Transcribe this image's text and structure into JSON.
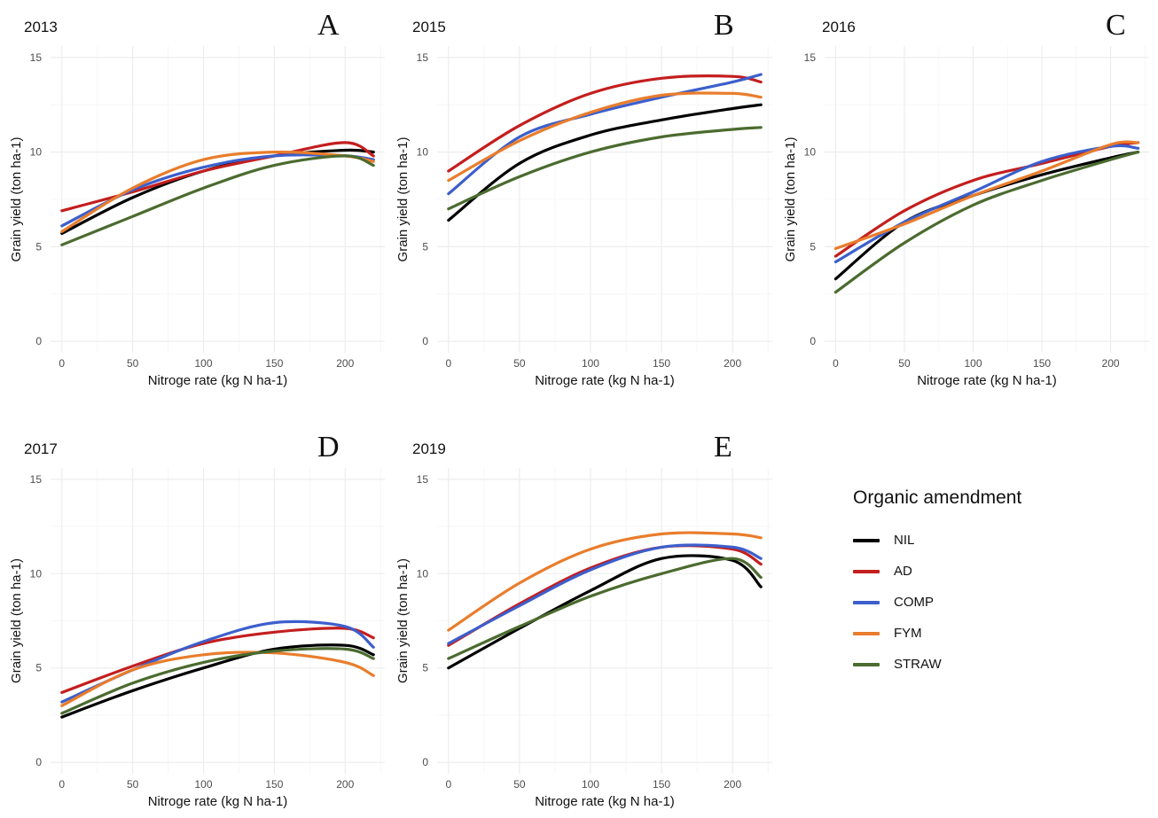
{
  "chart_data": [
    {
      "type": "line",
      "title": "2013",
      "panel_label": "A",
      "xlabel": "Nitroge rate (kg N ha-1)",
      "ylabel": "Grain yield (ton ha-1)",
      "xlim": [
        -8,
        228
      ],
      "ylim": [
        -0.6,
        15.6
      ],
      "xticks": [
        0,
        50,
        100,
        150,
        200
      ],
      "yticks": [
        0,
        5,
        10,
        15
      ],
      "grid": true,
      "series": [
        {
          "name": "NIL",
          "x": [
            0,
            50,
            100,
            150,
            200,
            220
          ],
          "y": [
            5.7,
            7.6,
            9.0,
            9.8,
            10.1,
            10.0
          ]
        },
        {
          "name": "AD",
          "x": [
            0,
            50,
            100,
            150,
            200,
            220
          ],
          "y": [
            6.9,
            7.9,
            9.0,
            9.8,
            10.5,
            9.8
          ]
        },
        {
          "name": "COMP",
          "x": [
            0,
            50,
            100,
            150,
            200,
            220
          ],
          "y": [
            6.1,
            8.0,
            9.2,
            9.8,
            9.8,
            9.6
          ]
        },
        {
          "name": "FYM",
          "x": [
            0,
            50,
            100,
            150,
            200,
            220
          ],
          "y": [
            5.8,
            8.1,
            9.6,
            10.0,
            9.8,
            9.5
          ]
        },
        {
          "name": "STRAW",
          "x": [
            0,
            50,
            100,
            150,
            200,
            220
          ],
          "y": [
            5.1,
            6.6,
            8.1,
            9.3,
            9.8,
            9.3
          ]
        }
      ]
    },
    {
      "type": "line",
      "title": "2015",
      "panel_label": "B",
      "xlabel": "Nitroge rate (kg N ha-1)",
      "ylabel": "Grain yield (ton ha-1)",
      "xlim": [
        -8,
        228
      ],
      "ylim": [
        -0.6,
        15.6
      ],
      "xticks": [
        0,
        50,
        100,
        150,
        200
      ],
      "yticks": [
        0,
        5,
        10,
        15
      ],
      "grid": true,
      "series": [
        {
          "name": "NIL",
          "x": [
            0,
            50,
            100,
            150,
            200,
            220
          ],
          "y": [
            6.4,
            9.4,
            10.9,
            11.7,
            12.3,
            12.5
          ]
        },
        {
          "name": "AD",
          "x": [
            0,
            50,
            100,
            150,
            200,
            220
          ],
          "y": [
            9.0,
            11.4,
            13.1,
            13.9,
            14.0,
            13.7
          ]
        },
        {
          "name": "COMP",
          "x": [
            0,
            50,
            100,
            150,
            200,
            220
          ],
          "y": [
            7.8,
            10.8,
            12.0,
            12.9,
            13.7,
            14.1
          ]
        },
        {
          "name": "FYM",
          "x": [
            0,
            50,
            100,
            150,
            200,
            220
          ],
          "y": [
            8.5,
            10.6,
            12.1,
            13.0,
            13.1,
            12.9
          ]
        },
        {
          "name": "STRAW",
          "x": [
            0,
            50,
            100,
            150,
            200,
            220
          ],
          "y": [
            7.0,
            8.7,
            10.0,
            10.8,
            11.2,
            11.3
          ]
        }
      ]
    },
    {
      "type": "line",
      "title": "2016",
      "panel_label": "C",
      "xlabel": "Nitroge rate (kg N ha-1)",
      "ylabel": "Grain yield (ton ha-1)",
      "xlim": [
        -8,
        228
      ],
      "ylim": [
        -0.6,
        15.6
      ],
      "xticks": [
        0,
        50,
        100,
        150,
        200
      ],
      "yticks": [
        0,
        5,
        10,
        15
      ],
      "grid": true,
      "series": [
        {
          "name": "NIL",
          "x": [
            0,
            50,
            100,
            150,
            200,
            220
          ],
          "y": [
            3.3,
            6.3,
            7.7,
            8.8,
            9.7,
            10.0
          ]
        },
        {
          "name": "AD",
          "x": [
            0,
            50,
            100,
            150,
            200,
            220
          ],
          "y": [
            4.5,
            6.9,
            8.5,
            9.4,
            10.3,
            10.5
          ]
        },
        {
          "name": "COMP",
          "x": [
            0,
            50,
            100,
            150,
            200,
            220
          ],
          "y": [
            4.2,
            6.3,
            7.9,
            9.5,
            10.3,
            10.2
          ]
        },
        {
          "name": "FYM",
          "x": [
            0,
            50,
            100,
            150,
            200,
            220
          ],
          "y": [
            4.9,
            6.2,
            7.7,
            9.0,
            10.4,
            10.5
          ]
        },
        {
          "name": "STRAW",
          "x": [
            0,
            50,
            100,
            150,
            200,
            220
          ],
          "y": [
            2.6,
            5.2,
            7.2,
            8.5,
            9.6,
            10.0
          ]
        }
      ]
    },
    {
      "type": "line",
      "title": "2017",
      "panel_label": "D",
      "xlabel": "Nitroge rate (kg N ha-1)",
      "ylabel": "Grain yield (ton ha-1)",
      "xlim": [
        -8,
        228
      ],
      "ylim": [
        -0.6,
        15.6
      ],
      "xticks": [
        0,
        50,
        100,
        150,
        200
      ],
      "yticks": [
        0,
        5,
        10,
        15
      ],
      "grid": true,
      "series": [
        {
          "name": "NIL",
          "x": [
            0,
            50,
            100,
            150,
            200,
            220
          ],
          "y": [
            2.4,
            3.8,
            5.0,
            6.0,
            6.2,
            5.7
          ]
        },
        {
          "name": "AD",
          "x": [
            0,
            50,
            100,
            150,
            200,
            220
          ],
          "y": [
            3.7,
            5.1,
            6.3,
            6.9,
            7.1,
            6.6
          ]
        },
        {
          "name": "COMP",
          "x": [
            0,
            50,
            100,
            150,
            200,
            220
          ],
          "y": [
            3.2,
            4.9,
            6.4,
            7.4,
            7.2,
            6.1
          ]
        },
        {
          "name": "FYM",
          "x": [
            0,
            50,
            100,
            150,
            200,
            220
          ],
          "y": [
            3.0,
            4.9,
            5.7,
            5.8,
            5.3,
            4.6
          ]
        },
        {
          "name": "STRAW",
          "x": [
            0,
            50,
            100,
            150,
            200,
            220
          ],
          "y": [
            2.6,
            4.2,
            5.3,
            5.9,
            6.0,
            5.5
          ]
        }
      ]
    },
    {
      "type": "line",
      "title": "2019",
      "panel_label": "E",
      "xlabel": "Nitroge rate (kg N ha-1)",
      "ylabel": "Grain yield (ton ha-1)",
      "xlim": [
        -8,
        228
      ],
      "ylim": [
        -0.6,
        15.6
      ],
      "xticks": [
        0,
        50,
        100,
        150,
        200
      ],
      "yticks": [
        0,
        5,
        10,
        15
      ],
      "grid": true,
      "series": [
        {
          "name": "NIL",
          "x": [
            0,
            50,
            100,
            150,
            200,
            220
          ],
          "y": [
            5.0,
            7.1,
            9.1,
            10.8,
            10.7,
            9.3
          ]
        },
        {
          "name": "AD",
          "x": [
            0,
            50,
            100,
            150,
            200,
            220
          ],
          "y": [
            6.2,
            8.4,
            10.3,
            11.4,
            11.3,
            10.5
          ]
        },
        {
          "name": "COMP",
          "x": [
            0,
            50,
            100,
            150,
            200,
            220
          ],
          "y": [
            6.3,
            8.3,
            10.2,
            11.4,
            11.4,
            10.8
          ]
        },
        {
          "name": "FYM",
          "x": [
            0,
            50,
            100,
            150,
            200,
            220
          ],
          "y": [
            7.0,
            9.5,
            11.3,
            12.1,
            12.1,
            11.9
          ]
        },
        {
          "name": "STRAW",
          "x": [
            0,
            50,
            100,
            150,
            200,
            220
          ],
          "y": [
            5.5,
            7.2,
            8.8,
            10.0,
            10.8,
            9.8
          ]
        }
      ]
    }
  ],
  "legend": {
    "title": "Organic amendment",
    "items": [
      {
        "label": "NIL",
        "color": "#000000"
      },
      {
        "label": "AD",
        "color": "#c41e1e"
      },
      {
        "label": "COMP",
        "color": "#3c5fcc"
      },
      {
        "label": "FYM",
        "color": "#e97d2c"
      },
      {
        "label": "STRAW",
        "color": "#4b6b2f"
      }
    ]
  }
}
